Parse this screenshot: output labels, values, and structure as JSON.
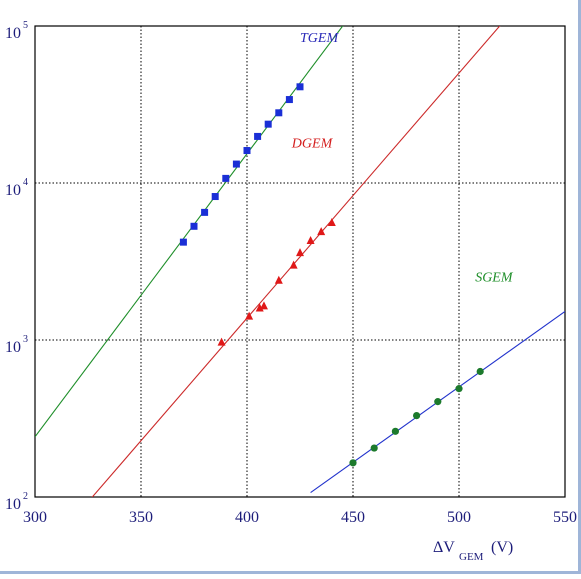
{
  "chart_data": {
    "type": "scatter",
    "title": "",
    "xlabel": "ΔV_GEM (V)",
    "xlabel_main": "ΔV",
    "xlabel_sub": "GEM",
    "xlabel_unit": "(V)",
    "ylabel": "",
    "xlim": [
      300,
      550
    ],
    "ylim": [
      100,
      100000
    ],
    "yscale": "log",
    "grid": true,
    "grid_style": "dotted",
    "x_ticks": [
      "300",
      "350",
      "400",
      "450",
      "500",
      "550"
    ],
    "y_ticks": [
      {
        "value": 100,
        "base": "10",
        "exp": "2"
      },
      {
        "value": 1000,
        "base": "10",
        "exp": "3"
      },
      {
        "value": 10000,
        "base": "10",
        "exp": "4"
      },
      {
        "value": 100000,
        "base": "10",
        "exp": "5"
      }
    ],
    "series": [
      {
        "name": "TGEM",
        "marker": "square",
        "marker_color": "#1a2fd6",
        "line_color": "#1f8f2a",
        "label_color": "#2a2ab8",
        "points": [
          {
            "x": 370,
            "y": 4200
          },
          {
            "x": 375,
            "y": 5300
          },
          {
            "x": 380,
            "y": 6500
          },
          {
            "x": 385,
            "y": 8200
          },
          {
            "x": 390,
            "y": 10700
          },
          {
            "x": 395,
            "y": 13200
          },
          {
            "x": 400,
            "y": 16100
          },
          {
            "x": 405,
            "y": 19800
          },
          {
            "x": 410,
            "y": 23700
          },
          {
            "x": 415,
            "y": 28000
          },
          {
            "x": 420,
            "y": 34000
          },
          {
            "x": 425,
            "y": 41000
          }
        ],
        "fit": {
          "x_start": 300,
          "x_end": 453
        }
      },
      {
        "name": "DGEM",
        "marker": "triangle",
        "marker_color": "#e01818",
        "line_color": "#cc2a2a",
        "label_color": "#d42020",
        "points": [
          {
            "x": 388,
            "y": 970
          },
          {
            "x": 401,
            "y": 1420
          },
          {
            "x": 406,
            "y": 1600
          },
          {
            "x": 408,
            "y": 1650
          },
          {
            "x": 415,
            "y": 2400
          },
          {
            "x": 422,
            "y": 3000
          },
          {
            "x": 425,
            "y": 3600
          },
          {
            "x": 430,
            "y": 4300
          },
          {
            "x": 435,
            "y": 4900
          },
          {
            "x": 440,
            "y": 5600
          }
        ],
        "fit": {
          "x_start": 325,
          "x_end": 550
        }
      },
      {
        "name": "SGEM",
        "marker": "circle",
        "marker_color": "#1c7a2c",
        "line_color": "#2233cc",
        "label_color": "#1f8f2a",
        "points": [
          {
            "x": 450,
            "y": 165
          },
          {
            "x": 460,
            "y": 205
          },
          {
            "x": 470,
            "y": 262
          },
          {
            "x": 480,
            "y": 330
          },
          {
            "x": 490,
            "y": 405
          },
          {
            "x": 500,
            "y": 490
          },
          {
            "x": 510,
            "y": 630
          }
        ],
        "fit": {
          "x_start": 430,
          "x_end": 550
        }
      }
    ]
  }
}
